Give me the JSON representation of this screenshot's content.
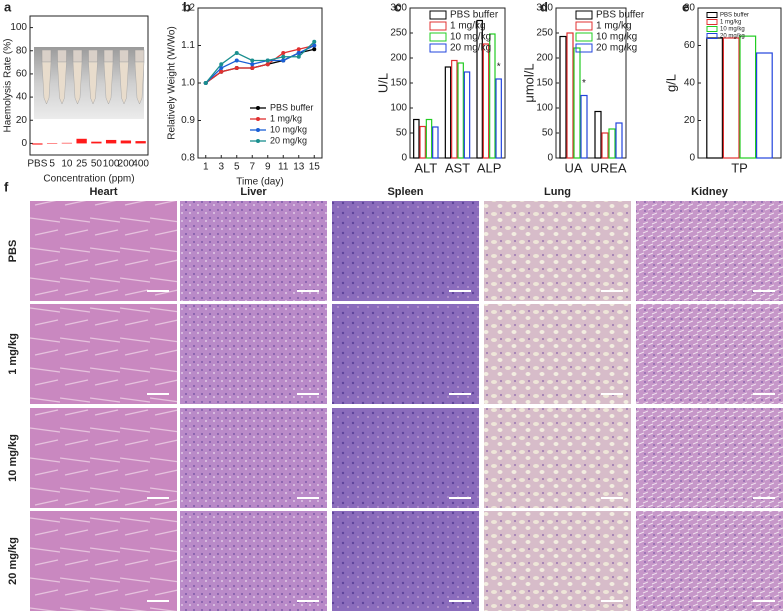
{
  "chart_data": [
    {
      "type": "bar",
      "panel_label": "a",
      "ylabel": "Haemolysis Rate (%)",
      "xlabel": "Concentration (ppm)",
      "categories": [
        "PBS",
        "5",
        "10",
        "25",
        "50",
        "100",
        "200",
        "400"
      ],
      "values": [
        -1,
        0,
        0.5,
        4,
        1.5,
        3,
        2.5,
        2
      ],
      "color": "#ff1a1a",
      "filled": true,
      "ylim": [
        -10,
        110
      ],
      "yticks": [
        0,
        20,
        40,
        60,
        80,
        100
      ]
    },
    {
      "type": "line",
      "panel_label": "b",
      "ylabel": "Relatively Weight (W/Wo)",
      "xlabel": "Time (day)",
      "x": [
        1,
        3,
        5,
        7,
        9,
        11,
        13,
        15
      ],
      "xlim": [
        0,
        16
      ],
      "xticks": [
        1,
        3,
        5,
        7,
        9,
        11,
        13,
        15
      ],
      "ylim": [
        0.8,
        1.2
      ],
      "yticks": [
        0.8,
        0.9,
        {
          "value": 1.0,
          "label": "1.0"
        },
        1.1,
        1.2
      ],
      "legend": "lower right",
      "series": [
        {
          "name": "PBS buffer",
          "color": "#000000",
          "values": [
            1.0,
            1.03,
            1.04,
            1.04,
            1.05,
            1.06,
            1.08,
            1.09
          ]
        },
        {
          "name": "1 mg/kg",
          "color": "#e03030",
          "values": [
            1.0,
            1.03,
            1.04,
            1.04,
            1.05,
            1.08,
            1.09,
            1.1
          ]
        },
        {
          "name": "10 mg/kg",
          "color": "#1a5fd6",
          "values": [
            1.0,
            1.04,
            1.06,
            1.05,
            1.06,
            1.06,
            1.08,
            1.1
          ]
        },
        {
          "name": "20 mg/kg",
          "color": "#1a8f8f",
          "values": [
            1.0,
            1.05,
            1.08,
            1.06,
            1.06,
            1.07,
            1.07,
            1.11
          ]
        }
      ]
    },
    {
      "type": "bar",
      "panel_label": "c",
      "ylabel": "U/L",
      "categories": [
        "ALT",
        "AST",
        "ALP"
      ],
      "filled": false,
      "ylim": [
        0,
        300
      ],
      "yticks": [
        0,
        50,
        100,
        150,
        200,
        250,
        300
      ],
      "legend": "upper right",
      "series": [
        {
          "name": "PBS buffer",
          "color": "#000000",
          "values": [
            77,
            182,
            275
          ]
        },
        {
          "name": "1 mg/kg",
          "color": "#e03030",
          "values": [
            63,
            195,
            228
          ]
        },
        {
          "name": "10 mg/kg",
          "color": "#22cc22",
          "values": [
            77,
            190,
            248
          ]
        },
        {
          "name": "20 mg/kg",
          "color": "#2244dd",
          "values": [
            62,
            172,
            158
          ]
        }
      ],
      "annotations": [
        {
          "text": "*",
          "category": "ALP",
          "series": "20 mg/kg"
        }
      ]
    },
    {
      "type": "bar",
      "panel_label": "d",
      "ylabel": "μmol/L",
      "categories": [
        "UA",
        "UREA"
      ],
      "filled": false,
      "ylim": [
        0,
        300
      ],
      "yticks": [
        0,
        50,
        100,
        150,
        200,
        250,
        300
      ],
      "legend": "upper right",
      "series": [
        {
          "name": "PBS buffer",
          "color": "#000000",
          "values": [
            243,
            93
          ]
        },
        {
          "name": "1 mg/kg",
          "color": "#e03030",
          "values": [
            250,
            50
          ]
        },
        {
          "name": "10 mg/kg",
          "color": "#22cc22",
          "values": [
            220,
            58
          ]
        },
        {
          "name": "20 mg/kg",
          "color": "#2244dd",
          "values": [
            125,
            70
          ]
        }
      ],
      "annotations": [
        {
          "text": "*",
          "category": "UA",
          "series": "20 mg/kg"
        }
      ]
    },
    {
      "type": "bar",
      "panel_label": "e",
      "ylabel": "g/L",
      "categories": [
        "TP"
      ],
      "filled": false,
      "ylim": [
        0,
        80
      ],
      "yticks": [
        0,
        20,
        40,
        60,
        80
      ],
      "legend": "upper right",
      "series": [
        {
          "name": "PBS buffer",
          "color": "#000000",
          "values": [
            64
          ]
        },
        {
          "name": "1 mg/kg",
          "color": "#e03030",
          "values": [
            64
          ]
        },
        {
          "name": "10 mg/kg",
          "color": "#22cc22",
          "values": [
            65
          ]
        },
        {
          "name": "20 mg/kg",
          "color": "#2244dd",
          "values": [
            56
          ]
        }
      ]
    }
  ],
  "histology": {
    "panel_label": "f",
    "columns": [
      "Heart",
      "Liver",
      "Spleen",
      "Lung",
      "Kidney"
    ],
    "rows": [
      "PBS",
      "1 mg/kg",
      "10 mg/kg",
      "20 mg/kg"
    ]
  }
}
